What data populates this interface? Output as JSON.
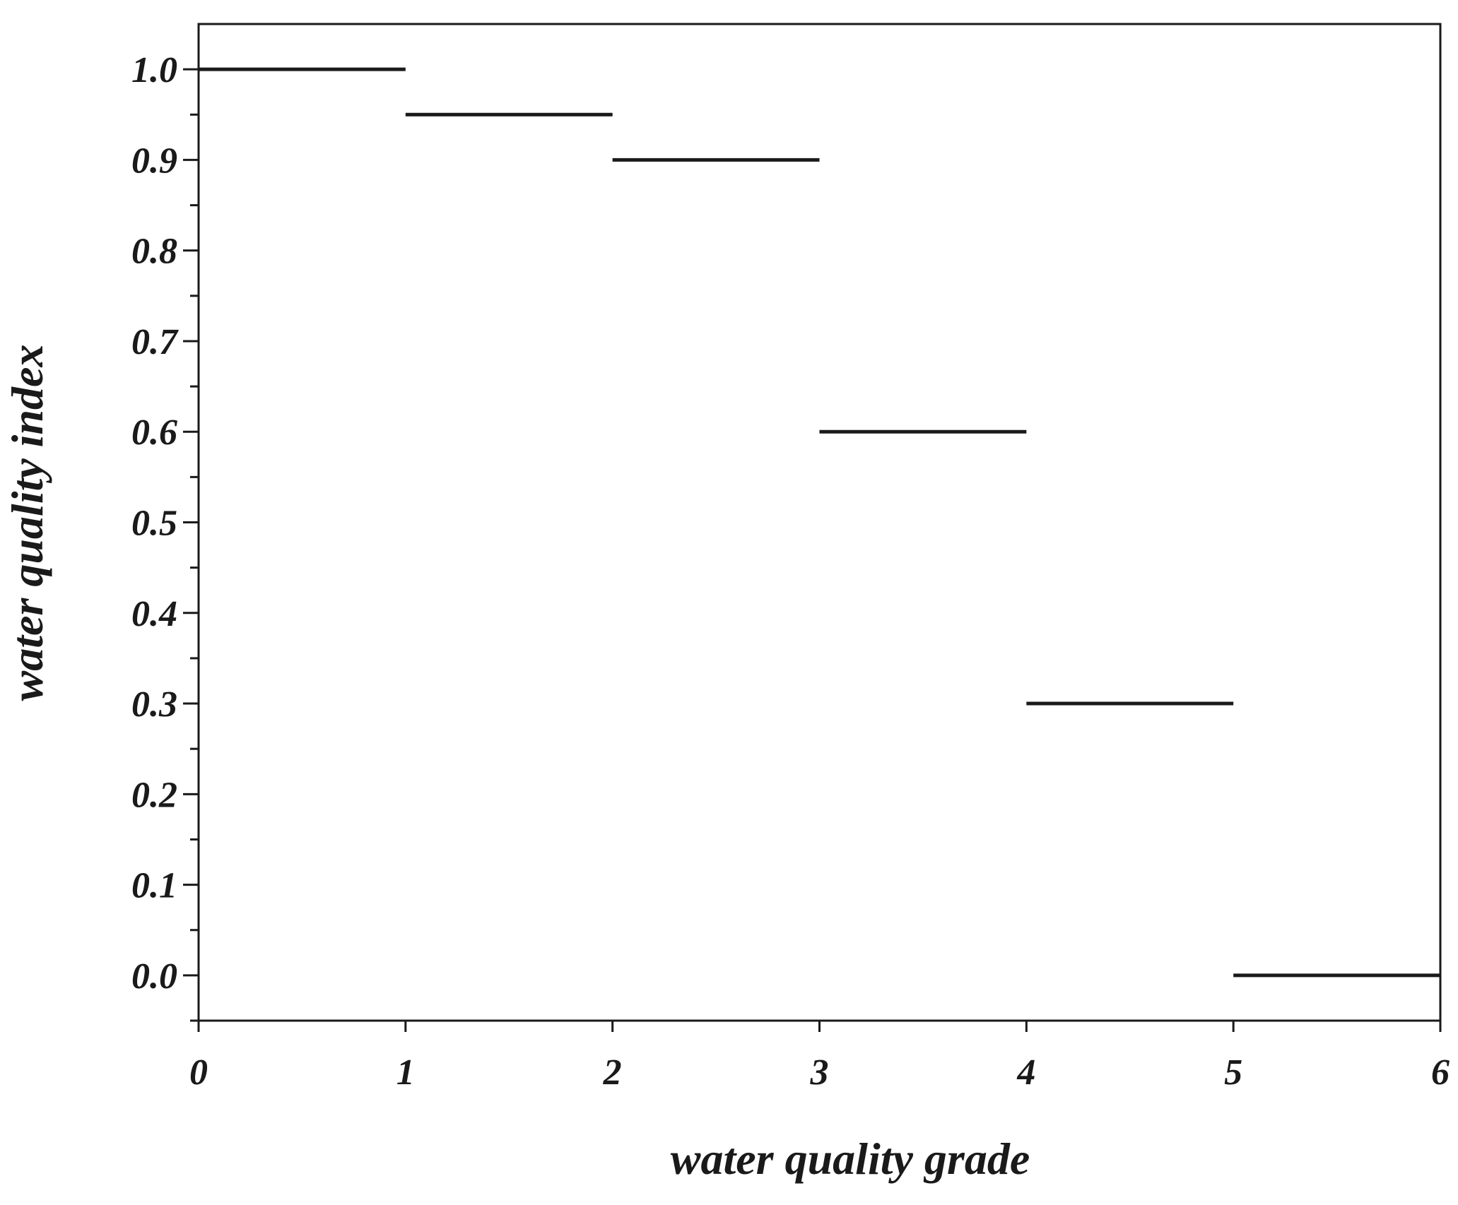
{
  "chart_data": {
    "type": "line",
    "style": "horizontal-step-segments",
    "title": "",
    "xlabel": "water quality grade",
    "ylabel": "water quality index",
    "xlim": [
      0,
      6
    ],
    "ylim": [
      -0.05,
      1.05
    ],
    "x_ticks": [
      "0",
      "1",
      "2",
      "3",
      "4",
      "5",
      "6"
    ],
    "y_ticks": [
      "0.0",
      "0.1",
      "0.2",
      "0.3",
      "0.4",
      "0.5",
      "0.6",
      "0.7",
      "0.8",
      "0.9",
      "1.0"
    ],
    "grid": false,
    "legend": "none",
    "color": "#1a1a1a",
    "segments": [
      {
        "x_start": 0,
        "x_end": 1,
        "y": 1.0
      },
      {
        "x_start": 1,
        "x_end": 2,
        "y": 0.95
      },
      {
        "x_start": 2,
        "x_end": 3,
        "y": 0.9
      },
      {
        "x_start": 3,
        "x_end": 4,
        "y": 0.6
      },
      {
        "x_start": 4,
        "x_end": 5,
        "y": 0.3
      },
      {
        "x_start": 5,
        "x_end": 6,
        "y": 0.0
      }
    ]
  }
}
